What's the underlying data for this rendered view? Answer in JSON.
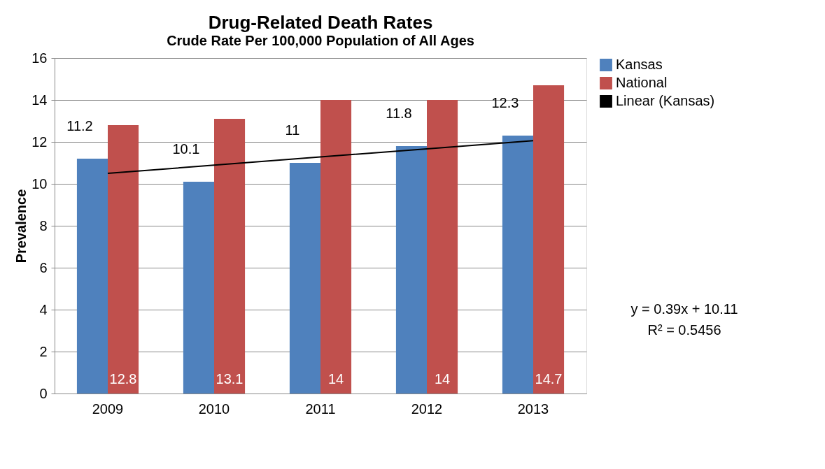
{
  "chart_data": {
    "type": "bar",
    "title": "Drug-Related Death Rates",
    "subtitle": "Crude Rate Per 100,000 Population of All Ages",
    "ylabel": "Prevalence",
    "categories": [
      "2009",
      "2010",
      "2011",
      "2012",
      "2013"
    ],
    "series": [
      {
        "name": "Kansas",
        "color": "#4f81bd",
        "values": [
          11.2,
          10.1,
          11,
          11.8,
          12.3
        ],
        "value_labels": [
          "11.2",
          "10.1",
          "11",
          "11.8",
          "12.3"
        ]
      },
      {
        "name": "National",
        "color": "#c0504d",
        "values": [
          12.8,
          13.1,
          14,
          14,
          14.7
        ],
        "value_labels": [
          "12.8",
          "13.1",
          "14",
          "14",
          "14.7"
        ]
      },
      {
        "name": "Linear (Kansas)",
        "type": "line",
        "color": "#000000",
        "values": [
          10.5,
          10.89,
          11.28,
          11.67,
          12.06
        ]
      }
    ],
    "ylim": [
      0,
      16
    ],
    "yticks": [
      0,
      2,
      4,
      6,
      8,
      10,
      12,
      14,
      16
    ],
    "grid": "y",
    "legend": "right",
    "marker": "none",
    "line_style": "solid",
    "annotations": [
      "y = 0.39x + 10.11",
      "R² = 0.5456"
    ]
  }
}
